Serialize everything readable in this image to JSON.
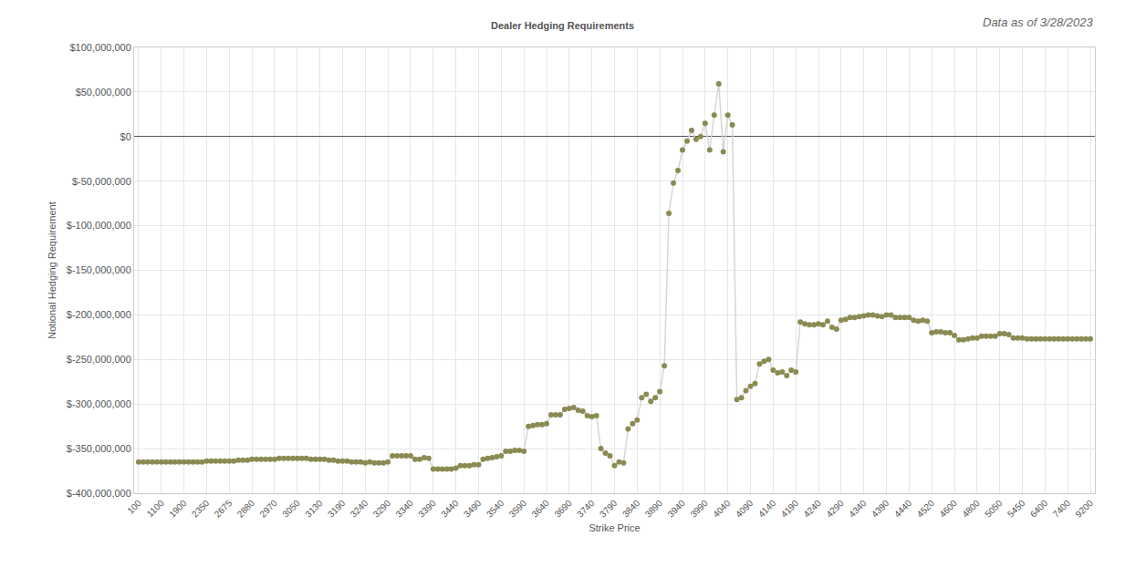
{
  "chart_data": {
    "type": "line",
    "title": "Dealer Hedging Requirements",
    "subtitle": "Data as of 3/28/2023",
    "x_label": "Strike Price",
    "y_label": "Notional Hedging Requirement",
    "marker": "circle",
    "grid": true,
    "categories": [
      "100",
      null,
      null,
      null,
      null,
      "1100",
      null,
      null,
      null,
      null,
      "1900",
      null,
      null,
      null,
      null,
      "2350",
      null,
      null,
      null,
      null,
      "2675",
      null,
      null,
      null,
      null,
      "2880",
      null,
      null,
      null,
      null,
      "2970",
      null,
      null,
      null,
      null,
      "3050",
      null,
      null,
      null,
      null,
      "3130",
      null,
      null,
      null,
      null,
      "3190",
      null,
      null,
      null,
      null,
      "3240",
      null,
      null,
      null,
      null,
      "3290",
      null,
      null,
      null,
      null,
      "3340",
      null,
      null,
      null,
      null,
      "3390",
      null,
      null,
      null,
      null,
      "3440",
      null,
      null,
      null,
      null,
      "3490",
      null,
      null,
      null,
      null,
      "3540",
      null,
      null,
      null,
      null,
      "3590",
      null,
      null,
      null,
      null,
      "3640",
      null,
      null,
      null,
      null,
      "3690",
      null,
      null,
      null,
      null,
      "3740",
      null,
      null,
      null,
      null,
      "3790",
      null,
      null,
      null,
      null,
      "3840",
      null,
      null,
      null,
      null,
      "3890",
      null,
      null,
      null,
      null,
      "3940",
      null,
      null,
      null,
      null,
      "3990",
      null,
      null,
      null,
      null,
      "4040",
      null,
      null,
      null,
      null,
      "4090",
      null,
      null,
      null,
      null,
      "4140",
      null,
      null,
      null,
      null,
      "4190",
      null,
      null,
      null,
      null,
      "4240",
      null,
      null,
      null,
      null,
      "4290",
      null,
      null,
      null,
      null,
      "4340",
      null,
      null,
      null,
      null,
      "4390",
      null,
      null,
      null,
      null,
      "4440",
      null,
      null,
      null,
      null,
      "4520",
      null,
      null,
      null,
      null,
      "4600",
      null,
      null,
      null,
      null,
      "4800",
      null,
      null,
      null,
      null,
      "5050",
      null,
      null,
      null,
      null,
      "5450",
      null,
      null,
      null,
      null,
      "6400",
      null,
      null,
      null,
      null,
      "7400",
      null,
      null,
      null,
      null,
      "9200"
    ],
    "series": [
      {
        "name": "Notional Hedging Requirement",
        "color": "#8b8a52",
        "values": [
          -365000000,
          -365000000,
          -365000000,
          -365000000,
          -365000000,
          -365000000,
          -365000000,
          -365000000,
          -365000000,
          -365000000,
          -365000000,
          -365000000,
          -365000000,
          -365000000,
          -365000000,
          -364000000,
          -364000000,
          -364000000,
          -364000000,
          -364000000,
          -364000000,
          -364000000,
          -363000000,
          -363000000,
          -363000000,
          -362000000,
          -362000000,
          -362000000,
          -362000000,
          -362000000,
          -362000000,
          -361000000,
          -361000000,
          -361000000,
          -361000000,
          -361000000,
          -361000000,
          -361000000,
          -362000000,
          -362000000,
          -362000000,
          -362000000,
          -363000000,
          -363000000,
          -364000000,
          -364000000,
          -364000000,
          -365000000,
          -365000000,
          -365000000,
          -366000000,
          -365000000,
          -366000000,
          -366000000,
          -366000000,
          -365000000,
          -358000000,
          -358000000,
          -358000000,
          -358000000,
          -358000000,
          -362000000,
          -362000000,
          -360000000,
          -361000000,
          -373000000,
          -373000000,
          -373000000,
          -373000000,
          -373000000,
          -372000000,
          -369000000,
          -369000000,
          -369000000,
          -368000000,
          -368000000,
          -362000000,
          -361000000,
          -360000000,
          -359000000,
          -358000000,
          -353000000,
          -353000000,
          -352000000,
          -352000000,
          -353000000,
          -325000000,
          -324000000,
          -323000000,
          -323000000,
          -322000000,
          -312000000,
          -312000000,
          -312000000,
          -306000000,
          -305000000,
          -304000000,
          -307000000,
          -308000000,
          -313000000,
          -314000000,
          -313000000,
          -350000000,
          -355000000,
          -358000000,
          -369000000,
          -365000000,
          -366000000,
          -328000000,
          -322000000,
          -318000000,
          -293000000,
          -289000000,
          -297000000,
          -293000000,
          -286000000,
          -257000000,
          -86000000,
          -52000000,
          -38000000,
          -15000000,
          -5000000,
          7000000,
          -3000000,
          0,
          15000000,
          -15000000,
          24000000,
          59000000,
          -17000000,
          24000000,
          13000000,
          -295000000,
          -293000000,
          -285000000,
          -280000000,
          -277000000,
          -255000000,
          -252000000,
          -250000000,
          -262000000,
          -265000000,
          -264000000,
          -268000000,
          -262000000,
          -264000000,
          -208000000,
          -210000000,
          -211000000,
          -211000000,
          -210000000,
          -211000000,
          -207000000,
          -214000000,
          -216000000,
          -206000000,
          -205000000,
          -203000000,
          -203000000,
          -202000000,
          -201000000,
          -200000000,
          -200000000,
          -201000000,
          -202000000,
          -200000000,
          -200000000,
          -203000000,
          -203000000,
          -203000000,
          -203000000,
          -206000000,
          -207000000,
          -206000000,
          -207000000,
          -220000000,
          -219000000,
          -219000000,
          -220000000,
          -220000000,
          -223000000,
          -228000000,
          -228000000,
          -227000000,
          -226000000,
          -226000000,
          -224000000,
          -224000000,
          -224000000,
          -224000000,
          -221000000,
          -221000000,
          -222000000,
          -226000000,
          -226000000,
          -226000000,
          -227000000,
          -227000000,
          -227000000,
          -227000000,
          -227000000,
          -227000000,
          -227000000,
          -227000000,
          -227000000,
          -227000000,
          -227000000,
          -227000000,
          -227000000,
          -227000000,
          -227000000
        ]
      }
    ],
    "ylim": [
      -400000000,
      100000000
    ],
    "yticks": [
      {
        "value": -400000000,
        "label": "$-400,000,000"
      },
      {
        "value": -350000000,
        "label": "$-350,000,000"
      },
      {
        "value": -300000000,
        "label": "$-300,000,000"
      },
      {
        "value": -250000000,
        "label": "$-250,000,000"
      },
      {
        "value": -200000000,
        "label": "$-200,000,000"
      },
      {
        "value": -150000000,
        "label": "$-150,000,000"
      },
      {
        "value": -100000000,
        "label": "$-100,000,000"
      },
      {
        "value": -50000000,
        "label": "$-50,000,000"
      },
      {
        "value": 0,
        "label": "$0"
      },
      {
        "value": 50000000,
        "label": "$50,000,000"
      },
      {
        "value": 100000000,
        "label": "$100,000,000"
      }
    ]
  }
}
